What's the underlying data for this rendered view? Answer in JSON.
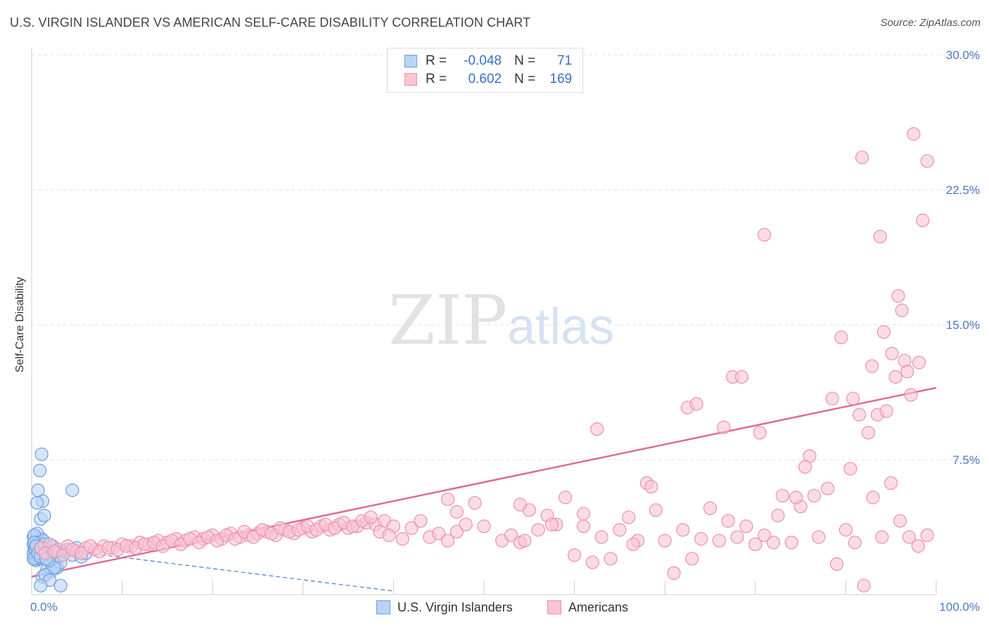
{
  "title": "U.S. VIRGIN ISLANDER VS AMERICAN SELF-CARE DISABILITY CORRELATION CHART",
  "source": "Source: ZipAtlas.com",
  "watermark": {
    "zip": "ZIP",
    "atlas": "atlas"
  },
  "legend": {
    "r_label": "R =",
    "n_label": "N =",
    "rows": [
      {
        "r": "-0.048",
        "n": "71",
        "fill": "#b9d3f5",
        "stroke": "#6d9de0"
      },
      {
        "r": "0.602",
        "n": "169",
        "fill": "#f9c4d4",
        "stroke": "#ec8fae"
      }
    ]
  },
  "bottom_legend": [
    {
      "label": "U.S. Virgin Islanders",
      "fill": "#b9d3f5",
      "stroke": "#6d9de0"
    },
    {
      "label": "Americans",
      "fill": "#f9c4d4",
      "stroke": "#ec8fae"
    }
  ],
  "chart_data": {
    "type": "scatter",
    "title": "U.S. VIRGIN ISLANDER VS AMERICAN SELF-CARE DISABILITY CORRELATION CHART",
    "xlabel": "",
    "ylabel": "Self-Care Disability",
    "xlim": [
      0,
      100
    ],
    "ylim": [
      0,
      30
    ],
    "x_tick_labels": [
      "0.0%",
      "100.0%"
    ],
    "y_ticks": [
      7.5,
      15.0,
      22.5,
      30.0
    ],
    "y_tick_labels": [
      "7.5%",
      "15.0%",
      "22.5%",
      "30.0%"
    ],
    "grid": true,
    "series": [
      {
        "name": "U.S. Virgin Islanders",
        "color": "#6d9de0",
        "fill": "#b9d3f5",
        "points": [
          [
            0.2,
            2.8
          ],
          [
            0.3,
            2.5
          ],
          [
            0.4,
            2.2
          ],
          [
            0.5,
            3.0
          ],
          [
            0.3,
            2.0
          ],
          [
            0.6,
            2.6
          ],
          [
            0.8,
            2.4
          ],
          [
            0.2,
            3.2
          ],
          [
            0.5,
            1.9
          ],
          [
            0.7,
            2.9
          ],
          [
            1.0,
            2.7
          ],
          [
            1.2,
            2.3
          ],
          [
            0.4,
            2.1
          ],
          [
            0.9,
            2.5
          ],
          [
            1.5,
            2.6
          ],
          [
            1.1,
            3.1
          ],
          [
            0.6,
            3.4
          ],
          [
            1.3,
            2.2
          ],
          [
            0.8,
            2.0
          ],
          [
            0.3,
            3.3
          ],
          [
            1.0,
            4.2
          ],
          [
            1.4,
            4.4
          ],
          [
            1.2,
            5.2
          ],
          [
            0.6,
            5.1
          ],
          [
            0.7,
            5.8
          ],
          [
            0.9,
            6.9
          ],
          [
            1.1,
            7.8
          ],
          [
            0.5,
            2.4
          ],
          [
            0.4,
            2.7
          ],
          [
            0.2,
            2.3
          ],
          [
            0.7,
            2.1
          ],
          [
            0.9,
            2.8
          ],
          [
            1.6,
            2.4
          ],
          [
            1.8,
            2.2
          ],
          [
            2.0,
            2.6
          ],
          [
            2.2,
            2.3
          ],
          [
            2.5,
            2.0
          ],
          [
            3.0,
            2.1
          ],
          [
            3.5,
            2.4
          ],
          [
            4.0,
            2.5
          ],
          [
            4.5,
            2.2
          ],
          [
            5.0,
            2.6
          ],
          [
            5.5,
            2.1
          ],
          [
            6.0,
            2.3
          ],
          [
            1.7,
            1.4
          ],
          [
            2.1,
            1.3
          ],
          [
            2.8,
            1.5
          ],
          [
            3.2,
            1.8
          ],
          [
            1.2,
            1.0
          ],
          [
            1.5,
            1.1
          ],
          [
            2.0,
            0.8
          ],
          [
            1.0,
            0.5
          ],
          [
            3.2,
            0.5
          ],
          [
            4.5,
            5.8
          ],
          [
            2.5,
            1.5
          ],
          [
            1.9,
            1.9
          ],
          [
            0.8,
            2.9
          ],
          [
            1.3,
            3.0
          ],
          [
            0.5,
            2.0
          ],
          [
            0.6,
            2.2
          ],
          [
            0.4,
            2.5
          ],
          [
            0.3,
            2.9
          ],
          [
            0.2,
            2.0
          ],
          [
            0.5,
            2.7
          ],
          [
            0.7,
            2.3
          ],
          [
            1.0,
            2.1
          ],
          [
            1.1,
            2.6
          ],
          [
            1.4,
            2.8
          ],
          [
            1.6,
            2.0
          ],
          [
            2.3,
            2.7
          ],
          [
            2.7,
            2.4
          ]
        ]
      },
      {
        "name": "Americans",
        "color": "#ec8fae",
        "fill": "#f9c4d4",
        "points": [
          [
            1.0,
            2.6
          ],
          [
            2.0,
            2.8
          ],
          [
            3.0,
            2.5
          ],
          [
            4.0,
            2.7
          ],
          [
            5.0,
            2.4
          ],
          [
            6.0,
            2.6
          ],
          [
            7.0,
            2.5
          ],
          [
            8.0,
            2.7
          ],
          [
            9.0,
            2.6
          ],
          [
            10.0,
            2.8
          ],
          [
            11.0,
            2.7
          ],
          [
            12.0,
            2.9
          ],
          [
            13.0,
            2.8
          ],
          [
            14.0,
            3.0
          ],
          [
            15.0,
            2.9
          ],
          [
            16.0,
            3.1
          ],
          [
            17.0,
            3.0
          ],
          [
            18.0,
            3.2
          ],
          [
            19.0,
            3.1
          ],
          [
            20.0,
            3.3
          ],
          [
            21.0,
            3.1
          ],
          [
            22.0,
            3.4
          ],
          [
            23.0,
            3.2
          ],
          [
            24.0,
            3.3
          ],
          [
            25.0,
            3.4
          ],
          [
            26.0,
            3.5
          ],
          [
            27.0,
            3.3
          ],
          [
            28.0,
            3.6
          ],
          [
            29.0,
            3.4
          ],
          [
            30.0,
            3.7
          ],
          [
            31.0,
            3.5
          ],
          [
            32.0,
            3.8
          ],
          [
            33.0,
            3.6
          ],
          [
            34.0,
            3.9
          ],
          [
            35.0,
            3.7
          ],
          [
            36.0,
            3.8
          ],
          [
            37.0,
            4.0
          ],
          [
            38.0,
            3.9
          ],
          [
            39.0,
            4.1
          ],
          [
            40.0,
            3.8
          ],
          [
            1.5,
            2.3
          ],
          [
            2.5,
            2.4
          ],
          [
            3.5,
            2.2
          ],
          [
            4.5,
            2.5
          ],
          [
            5.5,
            2.3
          ],
          [
            6.5,
            2.7
          ],
          [
            7.5,
            2.4
          ],
          [
            8.5,
            2.6
          ],
          [
            9.5,
            2.5
          ],
          [
            10.5,
            2.7
          ],
          [
            11.5,
            2.6
          ],
          [
            12.5,
            2.8
          ],
          [
            13.5,
            2.9
          ],
          [
            14.5,
            2.7
          ],
          [
            15.5,
            3.0
          ],
          [
            16.5,
            2.8
          ],
          [
            17.5,
            3.1
          ],
          [
            18.5,
            2.9
          ],
          [
            19.5,
            3.2
          ],
          [
            20.5,
            3.0
          ],
          [
            21.5,
            3.3
          ],
          [
            22.5,
            3.1
          ],
          [
            23.5,
            3.5
          ],
          [
            24.5,
            3.2
          ],
          [
            25.5,
            3.6
          ],
          [
            26.5,
            3.4
          ],
          [
            27.5,
            3.7
          ],
          [
            28.5,
            3.5
          ],
          [
            29.5,
            3.6
          ],
          [
            30.5,
            3.8
          ],
          [
            31.5,
            3.6
          ],
          [
            32.5,
            3.9
          ],
          [
            33.5,
            3.7
          ],
          [
            34.5,
            4.0
          ],
          [
            35.5,
            3.8
          ],
          [
            36.5,
            4.1
          ],
          [
            37.5,
            4.3
          ],
          [
            38.5,
            3.5
          ],
          [
            39.5,
            3.3
          ],
          [
            41.0,
            3.1
          ],
          [
            42.0,
            3.7
          ],
          [
            43.0,
            4.1
          ],
          [
            44.0,
            3.2
          ],
          [
            45.0,
            3.4
          ],
          [
            46.0,
            3.0
          ],
          [
            47.0,
            3.5
          ],
          [
            48.0,
            3.9
          ],
          [
            49.0,
            5.1
          ],
          [
            50.0,
            3.8
          ],
          [
            52.0,
            3.0
          ],
          [
            53.0,
            3.3
          ],
          [
            54.0,
            2.9
          ],
          [
            55.0,
            4.7
          ],
          [
            56.0,
            3.6
          ],
          [
            57.0,
            4.4
          ],
          [
            58.0,
            3.9
          ],
          [
            59.0,
            5.4
          ],
          [
            60.0,
            2.2
          ],
          [
            61.0,
            3.8
          ],
          [
            62.0,
            1.8
          ],
          [
            63.0,
            3.2
          ],
          [
            64.0,
            2.0
          ],
          [
            65.0,
            3.6
          ],
          [
            66.0,
            4.3
          ],
          [
            67.0,
            3.0
          ],
          [
            68.0,
            6.2
          ],
          [
            69.0,
            4.7
          ],
          [
            70.0,
            3.0
          ],
          [
            71.0,
            1.2
          ],
          [
            72.0,
            3.6
          ],
          [
            73.0,
            2.0
          ],
          [
            74.0,
            3.1
          ],
          [
            75.0,
            4.8
          ],
          [
            76.0,
            3.0
          ],
          [
            77.0,
            4.1
          ],
          [
            78.0,
            3.2
          ],
          [
            79.0,
            3.8
          ],
          [
            80.0,
            2.8
          ],
          [
            81.0,
            3.3
          ],
          [
            82.0,
            2.9
          ],
          [
            83.0,
            5.5
          ],
          [
            84.0,
            2.9
          ],
          [
            85.0,
            4.9
          ],
          [
            86.0,
            7.7
          ],
          [
            87.0,
            3.2
          ],
          [
            88.0,
            5.9
          ],
          [
            89.0,
            1.7
          ],
          [
            90.0,
            3.6
          ],
          [
            91.0,
            2.9
          ],
          [
            92.0,
            0.5
          ],
          [
            93.0,
            5.4
          ],
          [
            94.0,
            3.2
          ],
          [
            95.0,
            6.2
          ],
          [
            96.0,
            4.1
          ],
          [
            97.0,
            3.2
          ],
          [
            98.0,
            2.7
          ],
          [
            99.0,
            3.3
          ],
          [
            46.0,
            5.3
          ],
          [
            47.0,
            4.6
          ],
          [
            54.0,
            5.0
          ],
          [
            62.5,
            9.2
          ],
          [
            54.5,
            3.0
          ],
          [
            57.5,
            3.9
          ],
          [
            61.0,
            4.5
          ],
          [
            66.5,
            2.8
          ],
          [
            68.5,
            6.0
          ],
          [
            72.5,
            10.4
          ],
          [
            73.5,
            10.6
          ],
          [
            76.5,
            9.3
          ],
          [
            77.5,
            12.1
          ],
          [
            78.5,
            12.1
          ],
          [
            80.5,
            9.0
          ],
          [
            81.0,
            20.0
          ],
          [
            82.5,
            4.4
          ],
          [
            84.5,
            5.4
          ],
          [
            85.5,
            7.1
          ],
          [
            86.5,
            5.5
          ],
          [
            88.5,
            10.9
          ],
          [
            89.5,
            14.3
          ],
          [
            90.5,
            7.0
          ],
          [
            91.5,
            10.0
          ],
          [
            92.5,
            9.0
          ],
          [
            93.5,
            10.0
          ],
          [
            94.5,
            10.2
          ],
          [
            95.5,
            12.1
          ],
          [
            96.5,
            13.0
          ],
          [
            97.5,
            25.6
          ],
          [
            98.5,
            20.8
          ],
          [
            99.0,
            24.1
          ],
          [
            95.8,
            16.6
          ],
          [
            96.2,
            15.8
          ],
          [
            96.8,
            12.4
          ],
          [
            97.2,
            11.1
          ],
          [
            98.1,
            12.9
          ],
          [
            93.8,
            19.9
          ],
          [
            94.2,
            14.6
          ],
          [
            95.1,
            13.4
          ],
          [
            92.9,
            12.7
          ],
          [
            91.8,
            24.3
          ],
          [
            90.8,
            10.9
          ]
        ]
      }
    ],
    "trend_lines": [
      {
        "series": "Americans",
        "x": [
          0,
          100
        ],
        "y": [
          1.0,
          11.5
        ],
        "style": "solid"
      },
      {
        "series": "U.S. Virgin Islanders",
        "x": [
          0,
          40
        ],
        "y": [
          2.7,
          0.2
        ],
        "style": "dashed"
      }
    ]
  }
}
